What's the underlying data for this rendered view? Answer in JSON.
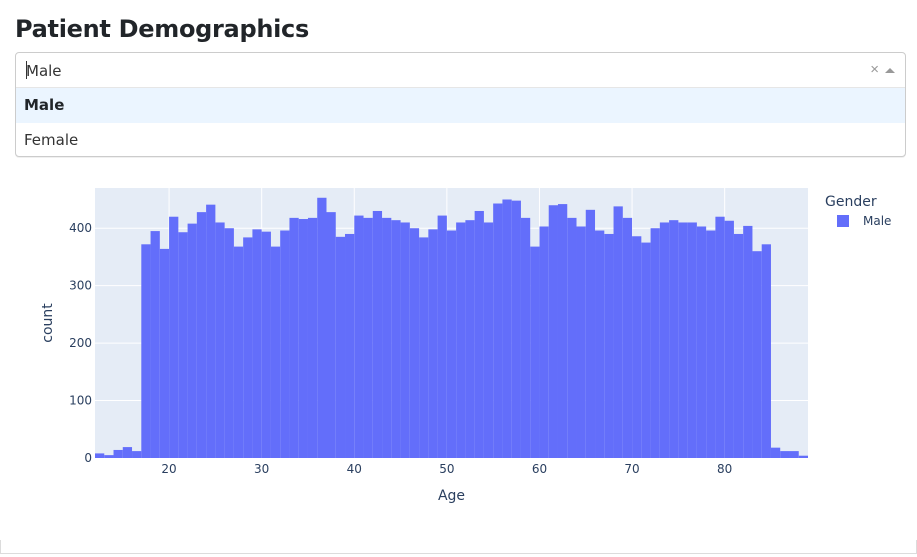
{
  "page": {
    "title": "Patient Demographics"
  },
  "dropdown": {
    "value": "Male",
    "clear_glyph": "×",
    "options": [
      {
        "label": "Male",
        "selected": true
      },
      {
        "label": "Female",
        "selected": false
      }
    ]
  },
  "chart_data": {
    "type": "bar",
    "title": "",
    "xlabel": "Age",
    "ylabel": "count",
    "xlim": [
      12,
      89
    ],
    "ylim": [
      0,
      470
    ],
    "x_ticks": [
      20,
      30,
      40,
      50,
      60,
      70,
      80
    ],
    "y_ticks": [
      0,
      100,
      200,
      300,
      400
    ],
    "grid": true,
    "bar_color": "#636efa",
    "plot_bg": "#e5ecf6",
    "legend": {
      "title": "Gender",
      "placement": "top-right",
      "entries": [
        {
          "name": "Male",
          "color": "#636efa"
        }
      ]
    },
    "series": [
      {
        "name": "Male",
        "bin_start": 12,
        "bin_width": 1,
        "values": [
          8,
          5,
          14,
          19,
          12,
          372,
          395,
          364,
          420,
          393,
          408,
          428,
          441,
          410,
          400,
          368,
          384,
          398,
          394,
          368,
          396,
          418,
          416,
          418,
          453,
          428,
          385,
          390,
          422,
          418,
          430,
          418,
          414,
          410,
          400,
          384,
          398,
          422,
          396,
          410,
          414,
          430,
          410,
          443,
          450,
          448,
          418,
          368,
          403,
          440,
          442,
          418,
          403,
          432,
          396,
          390,
          438,
          418,
          386,
          375,
          400,
          410,
          414,
          410,
          410,
          403,
          396,
          420,
          413,
          390,
          404,
          360,
          372,
          18,
          12,
          12,
          4
        ]
      }
    ]
  }
}
